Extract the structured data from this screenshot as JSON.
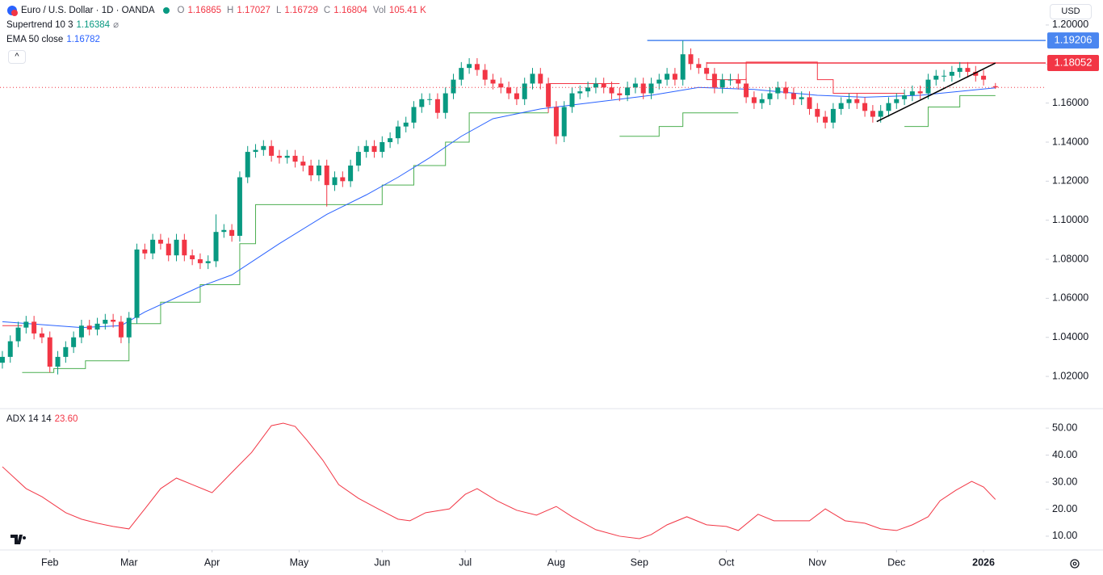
{
  "chart_data": {
    "type": "candlestick",
    "title": "Euro / U.S. Dollar · 1D · OANDA",
    "ohlc_labels": [
      "O",
      "H",
      "L",
      "C"
    ],
    "volume_label": "Vol",
    "volume": "105.41 K",
    "currency": "USD",
    "up_color": "#089981",
    "down_color": "#f23645",
    "x": [
      0,
      2,
      4,
      6,
      8,
      10,
      12,
      14,
      16,
      18,
      20,
      22,
      24,
      26,
      28,
      30,
      32,
      34,
      36,
      38,
      40,
      42,
      44,
      46,
      48,
      50,
      52,
      54,
      56,
      58,
      60,
      62,
      64,
      66,
      68,
      70,
      72,
      74,
      76,
      78,
      80,
      82,
      84,
      86,
      88,
      90,
      92,
      94,
      96,
      98,
      100,
      102,
      104,
      106,
      108,
      110,
      112,
      114,
      116,
      118,
      120,
      122,
      124,
      126,
      128,
      130,
      132,
      134,
      136,
      138,
      140,
      142,
      144,
      146,
      148,
      150,
      152,
      154,
      156,
      158,
      160,
      162,
      164,
      166,
      168,
      170,
      172,
      174,
      176,
      178,
      180,
      182,
      184,
      186,
      188,
      190,
      192,
      194,
      196,
      198,
      200,
      202,
      204,
      206,
      208,
      210,
      212,
      214,
      216,
      218,
      220,
      222,
      224,
      226,
      228,
      230,
      232,
      234,
      236,
      238,
      240,
      242,
      244,
      246,
      248,
      251
    ],
    "open": [
      1.027,
      1.03,
      1.038,
      1.045,
      1.048,
      1.042,
      1.04,
      1.025,
      1.03,
      1.035,
      1.04,
      1.046,
      1.044,
      1.047,
      1.049,
      1.048,
      1.04,
      1.05,
      1.085,
      1.083,
      1.09,
      1.088,
      1.082,
      1.09,
      1.082,
      1.08,
      1.078,
      1.079,
      1.094,
      1.095,
      1.092,
      1.122,
      1.135,
      1.136,
      1.138,
      1.133,
      1.132,
      1.133,
      1.13,
      1.128,
      1.123,
      1.128,
      1.118,
      1.122,
      1.12,
      1.128,
      1.135,
      1.138,
      1.135,
      1.14,
      1.142,
      1.148,
      1.15,
      1.158,
      1.162,
      1.162,
      1.155,
      1.165,
      1.172,
      1.178,
      1.18,
      1.177,
      1.172,
      1.17,
      1.168,
      1.165,
      1.162,
      1.17,
      1.175,
      1.17,
      1.158,
      1.143,
      1.158,
      1.165,
      1.166,
      1.168,
      1.17,
      1.168,
      1.165,
      1.164,
      1.168,
      1.17,
      1.165,
      1.17,
      1.172,
      1.175,
      1.172,
      1.185,
      1.18,
      1.178,
      1.175,
      1.168,
      1.172,
      1.172,
      1.17,
      1.163,
      1.16,
      1.162,
      1.165,
      1.168,
      1.165,
      1.162,
      1.163,
      1.157,
      1.153,
      1.15,
      1.157,
      1.16,
      1.162,
      1.16,
      1.156,
      1.153,
      1.156,
      1.16,
      1.162,
      1.164,
      1.166,
      1.165,
      1.172,
      1.174,
      1.174,
      1.176,
      1.178,
      1.176,
      1.174,
      1.16865
    ],
    "high": [
      1.033,
      1.041,
      1.048,
      1.051,
      1.051,
      1.045,
      1.043,
      1.033,
      1.038,
      1.043,
      1.049,
      1.049,
      1.05,
      1.052,
      1.052,
      1.051,
      1.053,
      1.088,
      1.088,
      1.093,
      1.093,
      1.091,
      1.093,
      1.093,
      1.085,
      1.083,
      1.082,
      1.103,
      1.098,
      1.098,
      1.125,
      1.138,
      1.139,
      1.141,
      1.141,
      1.136,
      1.136,
      1.136,
      1.133,
      1.131,
      1.131,
      1.131,
      1.125,
      1.125,
      1.131,
      1.138,
      1.141,
      1.141,
      1.143,
      1.145,
      1.151,
      1.153,
      1.161,
      1.165,
      1.165,
      1.165,
      1.168,
      1.175,
      1.181,
      1.183,
      1.183,
      1.18,
      1.175,
      1.173,
      1.171,
      1.168,
      1.173,
      1.178,
      1.178,
      1.173,
      1.161,
      1.161,
      1.168,
      1.169,
      1.171,
      1.173,
      1.173,
      1.171,
      1.168,
      1.171,
      1.173,
      1.173,
      1.173,
      1.175,
      1.178,
      1.178,
      1.192,
      1.188,
      1.183,
      1.181,
      1.178,
      1.175,
      1.175,
      1.175,
      1.173,
      1.166,
      1.165,
      1.168,
      1.171,
      1.171,
      1.168,
      1.166,
      1.166,
      1.16,
      1.156,
      1.16,
      1.163,
      1.165,
      1.165,
      1.163,
      1.159,
      1.159,
      1.163,
      1.165,
      1.167,
      1.169,
      1.169,
      1.175,
      1.177,
      1.177,
      1.179,
      1.181,
      1.181,
      1.179,
      1.177,
      1.17027
    ],
    "low": [
      1.024,
      1.027,
      1.035,
      1.042,
      1.039,
      1.037,
      1.022,
      1.021,
      1.027,
      1.032,
      1.037,
      1.041,
      1.041,
      1.044,
      1.045,
      1.037,
      1.037,
      1.047,
      1.08,
      1.08,
      1.085,
      1.079,
      1.079,
      1.079,
      1.077,
      1.075,
      1.075,
      1.076,
      1.091,
      1.089,
      1.089,
      1.119,
      1.132,
      1.133,
      1.13,
      1.129,
      1.129,
      1.127,
      1.125,
      1.12,
      1.12,
      1.107,
      1.115,
      1.117,
      1.117,
      1.125,
      1.132,
      1.132,
      1.132,
      1.137,
      1.139,
      1.145,
      1.147,
      1.155,
      1.159,
      1.152,
      1.152,
      1.162,
      1.169,
      1.175,
      1.174,
      1.169,
      1.167,
      1.165,
      1.162,
      1.159,
      1.159,
      1.167,
      1.167,
      1.155,
      1.139,
      1.14,
      1.155,
      1.162,
      1.163,
      1.165,
      1.165,
      1.162,
      1.161,
      1.161,
      1.165,
      1.162,
      1.162,
      1.167,
      1.169,
      1.169,
      1.169,
      1.177,
      1.175,
      1.172,
      1.165,
      1.165,
      1.169,
      1.167,
      1.16,
      1.157,
      1.157,
      1.159,
      1.162,
      1.162,
      1.159,
      1.159,
      1.154,
      1.15,
      1.147,
      1.147,
      1.154,
      1.157,
      1.157,
      1.153,
      1.15,
      1.15,
      1.153,
      1.157,
      1.159,
      1.161,
      1.162,
      1.162,
      1.169,
      1.171,
      1.171,
      1.173,
      1.173,
      1.171,
      1.169,
      1.16729
    ],
    "close": [
      1.03,
      1.038,
      1.045,
      1.048,
      1.042,
      1.04,
      1.025,
      1.03,
      1.035,
      1.04,
      1.046,
      1.044,
      1.047,
      1.049,
      1.048,
      1.04,
      1.05,
      1.085,
      1.083,
      1.09,
      1.088,
      1.082,
      1.09,
      1.082,
      1.08,
      1.078,
      1.079,
      1.094,
      1.095,
      1.092,
      1.122,
      1.135,
      1.136,
      1.138,
      1.133,
      1.132,
      1.133,
      1.13,
      1.128,
      1.123,
      1.128,
      1.118,
      1.122,
      1.12,
      1.128,
      1.135,
      1.138,
      1.135,
      1.14,
      1.142,
      1.148,
      1.15,
      1.158,
      1.162,
      1.162,
      1.155,
      1.165,
      1.172,
      1.178,
      1.18,
      1.177,
      1.172,
      1.17,
      1.168,
      1.165,
      1.162,
      1.17,
      1.175,
      1.17,
      1.158,
      1.143,
      1.158,
      1.165,
      1.166,
      1.168,
      1.17,
      1.168,
      1.165,
      1.164,
      1.168,
      1.17,
      1.165,
      1.17,
      1.172,
      1.175,
      1.172,
      1.185,
      1.18,
      1.178,
      1.175,
      1.168,
      1.172,
      1.172,
      1.17,
      1.163,
      1.16,
      1.162,
      1.165,
      1.168,
      1.165,
      1.162,
      1.163,
      1.157,
      1.153,
      1.15,
      1.157,
      1.16,
      1.162,
      1.16,
      1.156,
      1.153,
      1.156,
      1.16,
      1.162,
      1.164,
      1.166,
      1.165,
      1.172,
      1.174,
      1.174,
      1.176,
      1.178,
      1.176,
      1.174,
      1.172,
      1.16804
    ],
    "xlim": [
      -0.6,
      263.7
    ],
    "xticks": [
      {
        "value": 12,
        "label": "Feb"
      },
      {
        "value": 32,
        "label": "Mar"
      },
      {
        "value": 53,
        "label": "Apr"
      },
      {
        "value": 75,
        "label": "May"
      },
      {
        "value": 96,
        "label": "Jun"
      },
      {
        "value": 117,
        "label": "Jul"
      },
      {
        "value": 140,
        "label": "Aug"
      },
      {
        "value": 161,
        "label": "Sep"
      },
      {
        "value": 183,
        "label": "Oct"
      },
      {
        "value": 206,
        "label": "Nov"
      },
      {
        "value": 226,
        "label": "Dec"
      },
      {
        "value": 248,
        "label": "2026"
      }
    ],
    "ylim": [
      1.0039,
      1.2128
    ],
    "yticks": [
      {
        "value": 1.02,
        "label": "1.02000"
      },
      {
        "value": 1.04,
        "label": "1.04000"
      },
      {
        "value": 1.06,
        "label": "1.06000"
      },
      {
        "value": 1.08,
        "label": "1.08000"
      },
      {
        "value": 1.1,
        "label": "1.10000"
      },
      {
        "value": 1.12,
        "label": "1.12000"
      },
      {
        "value": 1.14,
        "label": "1.14000"
      },
      {
        "value": 1.16,
        "label": "1.16000"
      },
      {
        "value": 1.18,
        "label": "1.18000"
      },
      {
        "value": 1.2,
        "label": "1.20000"
      }
    ],
    "supertrend": {
      "label": "Supertrend 10 3",
      "up": {
        "color": "#4caf50",
        "x": [
          5,
          13,
          13,
          21,
          21,
          32,
          32,
          40,
          40,
          50,
          50,
          60,
          60,
          64,
          64,
          96,
          96,
          104,
          104,
          112,
          112,
          118,
          118,
          138,
          140,
          156,
          166,
          166,
          172,
          172,
          186,
          188,
          228,
          234,
          234,
          242,
          242,
          251
        ],
        "values": [
          1.022,
          1.022,
          1.024,
          1.024,
          1.028,
          1.028,
          1.047,
          1.047,
          1.058,
          1.058,
          1.067,
          1.067,
          1.088,
          1.088,
          1.108,
          1.108,
          1.118,
          1.118,
          1.128,
          1.128,
          1.14,
          1.14,
          1.155,
          1.155,
          null,
          1.143,
          1.143,
          1.148,
          1.148,
          1.155,
          1.155,
          null,
          1.148,
          1.148,
          1.158,
          1.158,
          1.16384,
          1.16384
        ]
      },
      "down": {
        "color": "#f23645",
        "x": [
          0,
          5,
          6,
          138,
          156,
          157,
          178,
          188,
          188,
          206,
          206,
          210,
          210,
          228
        ],
        "values": [
          1.046,
          1.046,
          null,
          1.17,
          1.17,
          null,
          1.172,
          1.172,
          1.181,
          1.181,
          1.172,
          1.172,
          1.165,
          1.165
        ]
      }
    },
    "ema": {
      "label": "EMA 50 close",
      "color": "#2962ff",
      "x": [
        0,
        20,
        30,
        36,
        50,
        58,
        70,
        82,
        92,
        100,
        108,
        116,
        124,
        136,
        148,
        164,
        176,
        190,
        206,
        218,
        232,
        251
      ],
      "values": [
        1.048,
        1.045,
        1.046,
        1.053,
        1.066,
        1.072,
        1.088,
        1.103,
        1.113,
        1.122,
        1.132,
        1.143,
        1.152,
        1.157,
        1.16,
        1.164,
        1.168,
        1.167,
        1.164,
        1.163,
        1.164,
        1.16782
      ]
    },
    "hlines": [
      {
        "value": 1.19206,
        "color": "#4a86f0",
        "x_from": 163
      },
      {
        "value": 1.18052,
        "color": "#f23645",
        "x_from": 178
      }
    ],
    "trendline": {
      "color": "#000000",
      "x": [
        221,
        251
      ],
      "values": [
        1.1505,
        1.1805
      ]
    },
    "adx": {
      "label": "ADX 14 14",
      "color": "#f23645",
      "x": [
        0,
        6,
        10,
        16,
        20,
        24,
        28,
        32,
        36,
        40,
        44,
        48,
        53,
        58,
        63,
        68,
        71,
        74,
        77,
        81,
        85,
        90,
        95,
        100,
        103,
        107,
        113,
        117,
        120,
        125,
        130,
        135,
        140,
        144,
        150,
        156,
        161,
        164,
        168,
        173,
        178,
        183,
        186,
        191,
        195,
        200,
        204,
        208,
        213,
        218,
        222,
        226,
        230,
        234,
        237,
        241,
        245,
        248,
        251
      ],
      "values": [
        35.7,
        27.6,
        24.6,
        18.7,
        16.3,
        14.8,
        13.6,
        12.7,
        20.1,
        27.6,
        31.5,
        29.1,
        26.1,
        33.6,
        41.0,
        50.9,
        51.8,
        50.6,
        45.5,
        38.1,
        29.1,
        24.0,
        20.1,
        16.3,
        15.7,
        18.7,
        20.1,
        25.5,
        27.6,
        23.1,
        19.6,
        17.8,
        21.0,
        17.2,
        12.4,
        10.0,
        9.1,
        10.6,
        14.2,
        17.2,
        14.2,
        13.6,
        12.1,
        18.1,
        15.7,
        15.7,
        15.7,
        20.1,
        15.7,
        14.8,
        12.7,
        12.1,
        14.2,
        17.2,
        23.1,
        27.0,
        30.3,
        28.2,
        23.6
      ],
      "value_label": "23.60",
      "ylim": [
        5.2,
        56.9
      ],
      "yticks": [
        {
          "value": 10,
          "label": "10.00"
        },
        {
          "value": 20,
          "label": "20.00"
        },
        {
          "value": 30,
          "label": "30.00"
        },
        {
          "value": 40,
          "label": "40.00"
        },
        {
          "value": 50,
          "label": "50.00"
        }
      ]
    }
  }
}
